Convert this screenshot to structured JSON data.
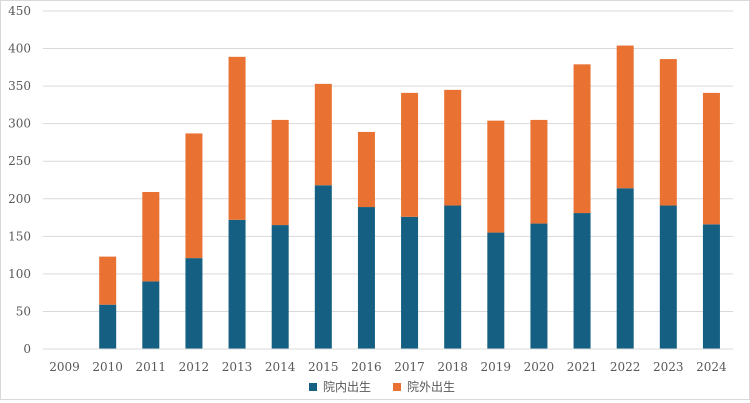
{
  "chart_data": {
    "type": "bar",
    "stacked": true,
    "categories": [
      "2009",
      "2010",
      "2011",
      "2012",
      "2013",
      "2014",
      "2015",
      "2016",
      "2017",
      "2018",
      "2019",
      "2020",
      "2021",
      "2022",
      "2023",
      "2024"
    ],
    "series": [
      {
        "name": "院内出生",
        "color": "#156082",
        "values": [
          0,
          59,
          90,
          121,
          172,
          165,
          218,
          189,
          176,
          191,
          155,
          167,
          181,
          214,
          191,
          166
        ]
      },
      {
        "name": "院外出生",
        "color": "#e97132",
        "values": [
          0,
          64,
          119,
          166,
          217,
          140,
          135,
          100,
          165,
          154,
          149,
          138,
          198,
          190,
          195,
          175
        ]
      }
    ],
    "ylim": [
      0,
      450
    ],
    "yticks": [
      "0",
      "50",
      "100",
      "150",
      "200",
      "250",
      "300",
      "350",
      "400",
      "450"
    ],
    "grid": true,
    "legend": "bottom",
    "gridline_color": "#d9d9d9",
    "axis_text_color": "#595959"
  }
}
